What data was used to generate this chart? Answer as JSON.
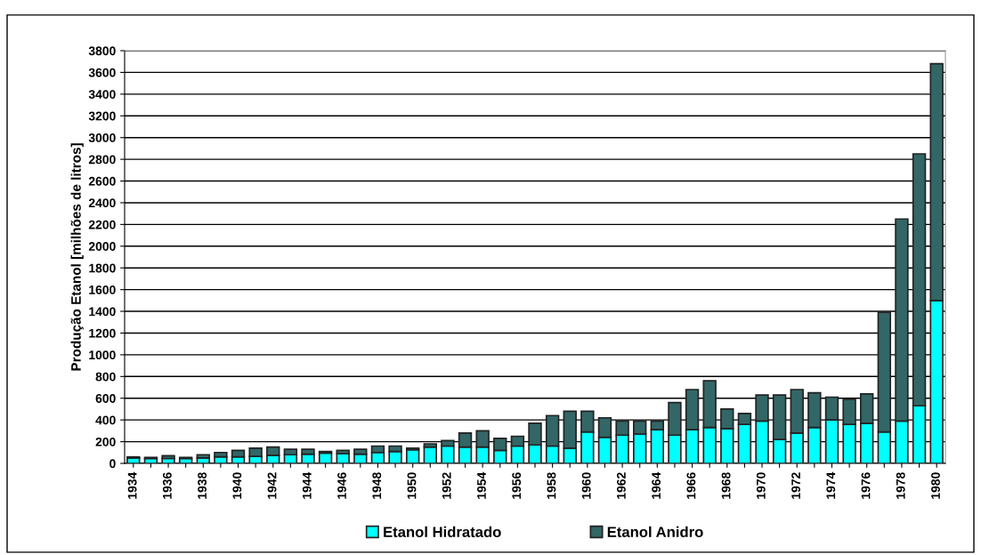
{
  "chart_data": {
    "type": "bar",
    "stacked": true,
    "ylabel": "Produção Etanol [milhões de litros]",
    "categories": [
      "1934",
      null,
      "1936",
      null,
      "1938",
      null,
      "1940",
      null,
      "1942",
      null,
      "1944",
      null,
      "1946",
      null,
      "1948",
      null,
      "1950",
      null,
      "1952",
      null,
      "1954",
      null,
      "1956",
      null,
      "1958",
      null,
      "1960",
      null,
      "1962",
      null,
      "1964",
      null,
      "1966",
      null,
      "1968",
      null,
      "1970",
      null,
      "1972",
      null,
      "1974",
      null,
      "1976",
      null,
      "1978",
      null,
      "1980"
    ],
    "series": [
      {
        "name": "Etanol Hidratado",
        "color": "#00ffff",
        "values": [
          50,
          45,
          45,
          45,
          50,
          60,
          60,
          65,
          75,
          80,
          85,
          95,
          90,
          85,
          100,
          110,
          125,
          150,
          160,
          150,
          150,
          120,
          160,
          170,
          160,
          140,
          290,
          240,
          260,
          270,
          310,
          260,
          310,
          330,
          320,
          360,
          390,
          220,
          280,
          330,
          400,
          360,
          370,
          290,
          390,
          530,
          1500
        ]
      },
      {
        "name": "Etanol Anidro",
        "color": "#336666",
        "values": [
          10,
          10,
          25,
          10,
          30,
          40,
          60,
          75,
          75,
          50,
          45,
          15,
          30,
          45,
          60,
          50,
          15,
          30,
          50,
          130,
          150,
          110,
          90,
          200,
          280,
          340,
          190,
          180,
          130,
          120,
          80,
          300,
          370,
          430,
          180,
          100,
          240,
          410,
          400,
          320,
          210,
          230,
          270,
          1100,
          1860,
          2320,
          2180
        ]
      }
    ],
    "ylim": [
      0,
      3800
    ],
    "yticks": [
      0,
      200,
      400,
      600,
      800,
      1000,
      1200,
      1400,
      1600,
      1800,
      2000,
      2200,
      2400,
      2600,
      2800,
      3000,
      3200,
      3400,
      3600,
      3800
    ],
    "grid": "y",
    "legend": "bottom"
  }
}
